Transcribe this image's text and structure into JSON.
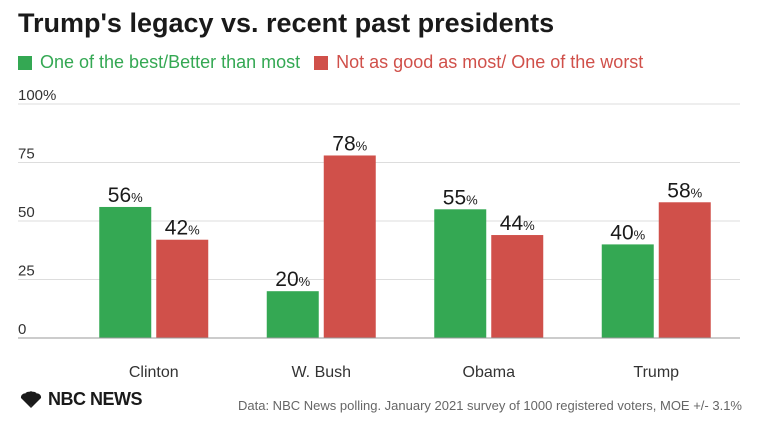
{
  "colors": {
    "green": "#34a853",
    "red": "#d0504a",
    "grid": "#dddddd",
    "text": "#222222"
  },
  "title": "Trump's legacy vs. recent past presidents",
  "legend": [
    {
      "label": "One of the best/Better than most",
      "color": "#34a853"
    },
    {
      "label": "Not as good as most/ One of the worst",
      "color": "#d0504a"
    }
  ],
  "chart_data": {
    "type": "bar",
    "categories": [
      "Clinton",
      "W. Bush",
      "Obama",
      "Trump"
    ],
    "series": [
      {
        "name": "One of the best/Better than most",
        "values": [
          56,
          20,
          55,
          40
        ],
        "color": "#34a853"
      },
      {
        "name": "Not as good as most/ One of the worst",
        "values": [
          42,
          78,
          44,
          58
        ],
        "color": "#d0504a"
      }
    ],
    "yticks": [
      "0",
      "25",
      "50",
      "75",
      "100%"
    ],
    "ylim": [
      0,
      100
    ],
    "value_suffix": "%",
    "grid": true
  },
  "logo": {
    "text": "NBC NEWS"
  },
  "source": "Data: NBC News polling. January 2021 survey of 1000 registered voters, MOE +/- 3.1%"
}
